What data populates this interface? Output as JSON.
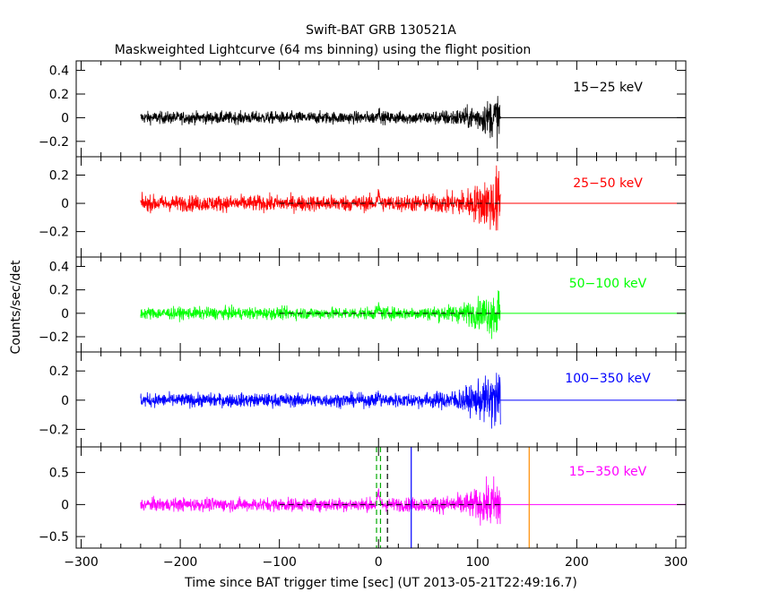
{
  "title": "Swift-BAT GRB 130521A",
  "subtitle": "Maskweighted Lightcurve (64 ms binning) using the flight position",
  "ylabel": "Counts/sec/det",
  "xlabel": "Time since BAT trigger time [sec] (UT 2013-05-21T22:49:16.7)",
  "chart_data": {
    "type": "line",
    "title": "Swift-BAT GRB 130521A",
    "xlim": [
      -305,
      310
    ],
    "x_ticks": [
      -300,
      -200,
      -100,
      0,
      100,
      200,
      300
    ],
    "x_tick_labels": [
      "−300",
      "−200",
      "−100",
      "0",
      "100",
      "200",
      "300"
    ],
    "data_start": -240,
    "data_end": 123,
    "panels": [
      {
        "name": "15-25 keV",
        "label": "15−25 keV",
        "color": "#000000",
        "ylim": [
          -0.33,
          0.48
        ],
        "ticks": [
          -0.2,
          0,
          0.2,
          0.4
        ],
        "tick_labels": [
          "−0.2",
          "0",
          "0.2",
          "0.4"
        ],
        "noise": 0.05,
        "spike": 0.07,
        "rise": 0.17,
        "zero_line": "solid",
        "zero_line_start": 123
      },
      {
        "name": "25-50 keV",
        "label": "25−50 keV",
        "color": "#ff0000",
        "ylim": [
          -0.38,
          0.33
        ],
        "ticks": [
          -0.2,
          0,
          0.2
        ],
        "tick_labels": [
          "−0.2",
          "0",
          "0.2"
        ],
        "noise": 0.055,
        "spike": 0.08,
        "rise": 0.22,
        "zero_line": "dashed",
        "zero_line_start": -100
      },
      {
        "name": "50-100 keV",
        "label": "50−100 keV",
        "color": "#00ff00",
        "ylim": [
          -0.33,
          0.48
        ],
        "ticks": [
          -0.2,
          0,
          0.2,
          0.4
        ],
        "tick_labels": [
          "−0.2",
          "0",
          "0.2",
          "0.4"
        ],
        "noise": 0.05,
        "spike": 0.06,
        "rise": 0.2,
        "zero_line": "dashed",
        "zero_line_start": -100
      },
      {
        "name": "100-350 keV",
        "label": "100−350 keV",
        "color": "#0000ff",
        "ylim": [
          -0.32,
          0.33
        ],
        "ticks": [
          -0.2,
          0,
          0.2
        ],
        "tick_labels": [
          "−0.2",
          "0",
          "0.2"
        ],
        "noise": 0.045,
        "spike": 0.04,
        "rise": 0.2,
        "zero_line": "solid",
        "zero_line_start": 123
      },
      {
        "name": "15-350 keV",
        "label": "15−350 keV",
        "color": "#ff00ff",
        "ylim": [
          -0.68,
          0.9
        ],
        "ticks": [
          -0.5,
          0,
          0.5
        ],
        "tick_labels": [
          "−0.5",
          "0",
          "0.5"
        ],
        "noise": 0.1,
        "spike": 0.2,
        "rise": 0.4,
        "zero_line": "dashed",
        "zero_line_start": -100
      }
    ],
    "markers": [
      {
        "x": -2,
        "style": "dashed",
        "color": "#00aa00"
      },
      {
        "x": 2,
        "style": "dashed",
        "color": "#00aa00"
      },
      {
        "x": 9,
        "style": "dashed",
        "color": "#000000"
      },
      {
        "x": 33,
        "style": "solid",
        "color": "#0000ff"
      },
      {
        "x": 152,
        "style": "solid",
        "color": "#ff8c00"
      }
    ]
  }
}
